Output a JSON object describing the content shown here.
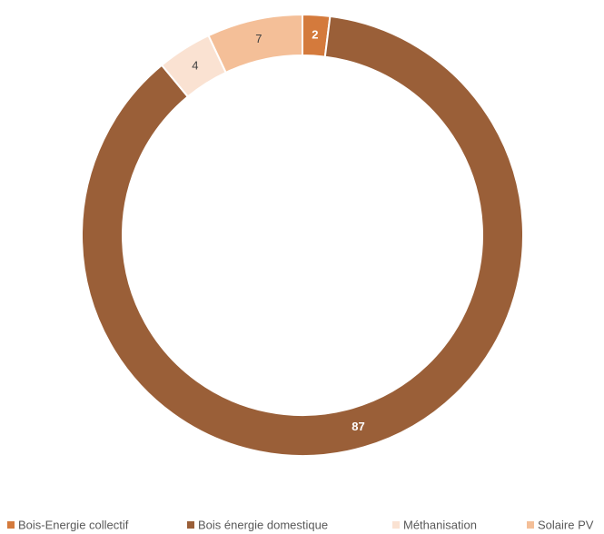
{
  "chart_data": {
    "type": "donut",
    "categories": [
      "Bois-Energie collectif",
      "Bois énergie domestique",
      "Méthanisation",
      "Solaire PV"
    ],
    "values": [
      2,
      87,
      4,
      7
    ],
    "colors": [
      "#d47a3c",
      "#9a5f38",
      "#fae2d2",
      "#f4bf98"
    ],
    "legend": "bottom"
  }
}
